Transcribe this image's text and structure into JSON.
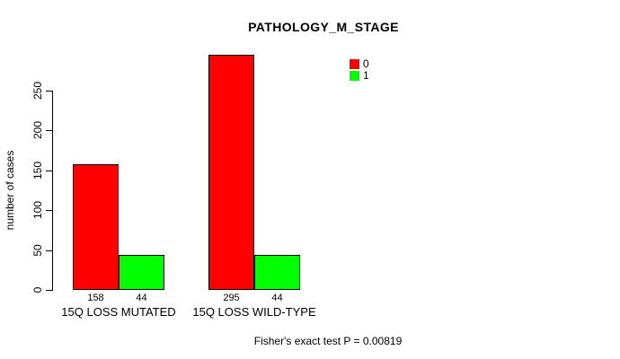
{
  "chart_data": {
    "type": "bar",
    "title": "PATHOLOGY_M_STAGE",
    "ylabel": "number of cases",
    "xlabel": "",
    "categories": [
      "15Q LOSS MUTATED",
      "15Q LOSS WILD-TYPE"
    ],
    "series": [
      {
        "name": "0",
        "color": "#ff0000",
        "values": [
          158,
          295
        ]
      },
      {
        "name": "1",
        "color": "#00ff00",
        "values": [
          44,
          44
        ]
      }
    ],
    "yticks": [
      0,
      50,
      100,
      150,
      200,
      250
    ],
    "ylim": [
      0,
      295
    ],
    "grid": false,
    "legend_position": "top-right",
    "annotation": "Fisher's exact test P = 0.00819"
  },
  "colors": {
    "axis": "#000000",
    "text": "#000000",
    "background": "#ffffff",
    "bar_border": "#000000"
  }
}
